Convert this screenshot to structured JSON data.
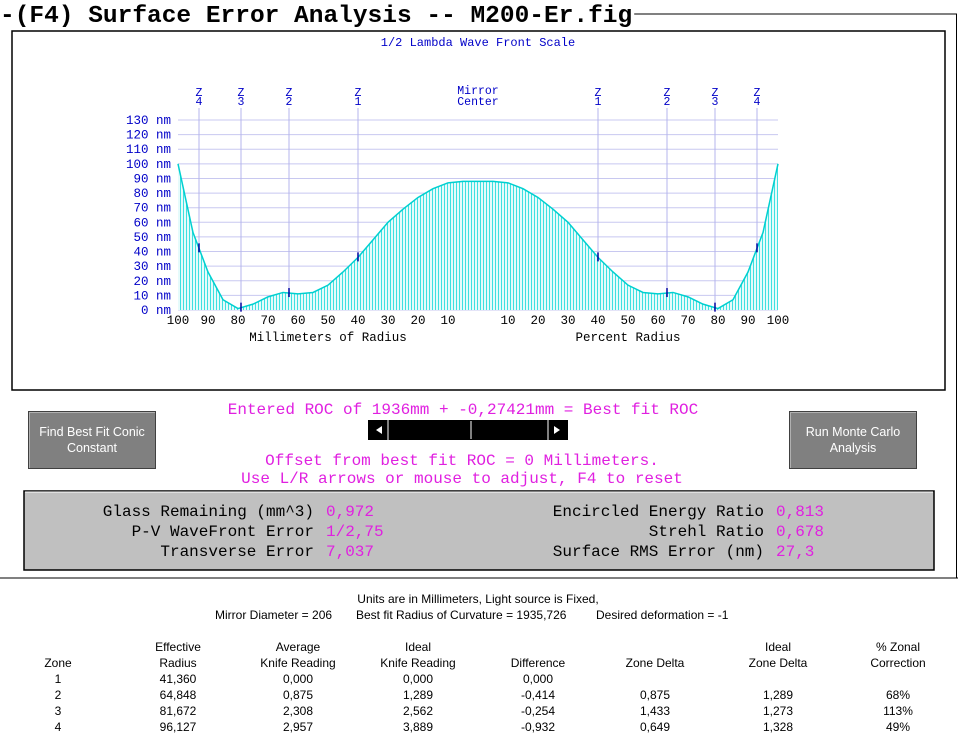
{
  "title": "-(F4) Surface Error Analysis -- M200-Er.fig",
  "chart_data": {
    "type": "area",
    "title": "1/2 Lambda Wave Front Scale",
    "center_label": [
      "Mirror",
      "Center"
    ],
    "zones": [
      {
        "x": -93,
        "letter": "Z",
        "number": "4"
      },
      {
        "x": -79,
        "letter": "Z",
        "number": "3"
      },
      {
        "x": -63,
        "letter": "Z",
        "number": "2"
      },
      {
        "x": -40,
        "letter": "Z",
        "number": "1"
      },
      {
        "x": 40,
        "letter": "Z",
        "number": "1"
      },
      {
        "x": 63,
        "letter": "Z",
        "number": "2"
      },
      {
        "x": 79,
        "letter": "Z",
        "number": "3"
      },
      {
        "x": 93,
        "letter": "Z",
        "number": "4"
      }
    ],
    "x": [
      -100,
      -95,
      -90,
      -85,
      -80,
      -75,
      -70,
      -65,
      -60,
      -55,
      -50,
      -45,
      -40,
      -35,
      -30,
      -25,
      -20,
      -15,
      -10,
      -5,
      0,
      5,
      10,
      15,
      20,
      25,
      30,
      35,
      40,
      45,
      50,
      55,
      60,
      65,
      70,
      75,
      80,
      85,
      90,
      95,
      100
    ],
    "values": [
      100,
      53,
      26,
      7,
      1,
      4,
      9,
      12,
      11,
      12,
      17,
      26,
      36,
      48,
      60,
      69,
      77,
      83,
      87,
      88,
      88,
      88,
      87,
      83,
      77,
      69,
      60,
      48,
      36,
      26,
      17,
      12,
      11,
      12,
      9,
      4,
      1,
      7,
      26,
      53,
      100
    ],
    "color": "#00d0d0",
    "xlim": [
      -100,
      100
    ],
    "ylim": [
      0,
      130
    ],
    "yticks": [
      {
        "value": 0,
        "label": "0 nm"
      },
      {
        "value": 10,
        "label": "10 nm"
      },
      {
        "value": 20,
        "label": "20 nm"
      },
      {
        "value": 30,
        "label": "30 nm"
      },
      {
        "value": 40,
        "label": "40 nm"
      },
      {
        "value": 50,
        "label": "50 nm"
      },
      {
        "value": 60,
        "label": "60 nm"
      },
      {
        "value": 70,
        "label": "70 nm"
      },
      {
        "value": 80,
        "label": "80 nm"
      },
      {
        "value": 90,
        "label": "90 nm"
      },
      {
        "value": 100,
        "label": "100 nm"
      },
      {
        "value": 110,
        "label": "110 nm"
      },
      {
        "value": 120,
        "label": "120 nm"
      },
      {
        "value": 130,
        "label": "130 nm"
      }
    ],
    "xticks": [
      {
        "value": -100,
        "label": "100"
      },
      {
        "value": -90,
        "label": "90"
      },
      {
        "value": -80,
        "label": "80"
      },
      {
        "value": -70,
        "label": "70"
      },
      {
        "value": -60,
        "label": "60"
      },
      {
        "value": -50,
        "label": "50"
      },
      {
        "value": -40,
        "label": "40"
      },
      {
        "value": -30,
        "label": "30"
      },
      {
        "value": -20,
        "label": "20"
      },
      {
        "value": -10,
        "label": "10"
      },
      10,
      20,
      30,
      40,
      50,
      60,
      70,
      80,
      90,
      100
    ],
    "x_label_left": "Millimeters of Radius",
    "x_label_right": "Percent Radius",
    "grid": true
  },
  "controls": {
    "conic_button": "Find Best Fit Conic Constant",
    "monte_carlo_button": "Run Monte Carlo Analysis",
    "roc_text": "Entered ROC of 1936mm + -0,27421mm = Best fit ROC",
    "offset_text": "Offset from best fit ROC = 0 Millimeters.",
    "hint_text": "Use L/R arrows or mouse to adjust, F4 to reset"
  },
  "results": {
    "left": [
      {
        "label": "Glass Remaining (mm^3)",
        "value": "0,972"
      },
      {
        "label": "P-V WaveFront Error",
        "value": "1/2,75"
      },
      {
        "label": "Transverse Error",
        "value": "7,037"
      }
    ],
    "right": [
      {
        "label": "Encircled Energy Ratio",
        "value": "0,813"
      },
      {
        "label": "Strehl Ratio",
        "value": "0,678"
      },
      {
        "label": "Surface RMS Error (nm)",
        "value": "27,3"
      }
    ]
  },
  "info": {
    "line1": "Units are in Millimeters, Light source is Fixed,",
    "line2": [
      "Mirror Diameter = 206",
      "Best fit Radius of Curvature = 1935,726",
      "Desired deformation = -1"
    ]
  },
  "table": {
    "header": [
      [
        "Zone"
      ],
      [
        "Effective",
        "Radius"
      ],
      [
        "Average",
        "Knife Reading"
      ],
      [
        "Ideal",
        "Knife Reading"
      ],
      [
        "Difference"
      ],
      [
        "Zone Delta"
      ],
      [
        "Ideal",
        "Zone Delta"
      ],
      [
        "% Zonal",
        "Correction"
      ]
    ],
    "rows": [
      [
        "1",
        "41,360",
        "0,000",
        "0,000",
        "0,000"
      ],
      [
        "2",
        "64,848",
        "0,875",
        "1,289",
        "-0,414",
        "0,875",
        "1,289",
        "68%"
      ],
      [
        "3",
        "81,672",
        "2,308",
        "2,562",
        "-0,254",
        "1,433",
        "1,273",
        "113%"
      ],
      [
        "4",
        "96,127",
        "2,957",
        "3,889",
        "-0,932",
        "0,649",
        "1,328",
        "49%"
      ]
    ]
  }
}
